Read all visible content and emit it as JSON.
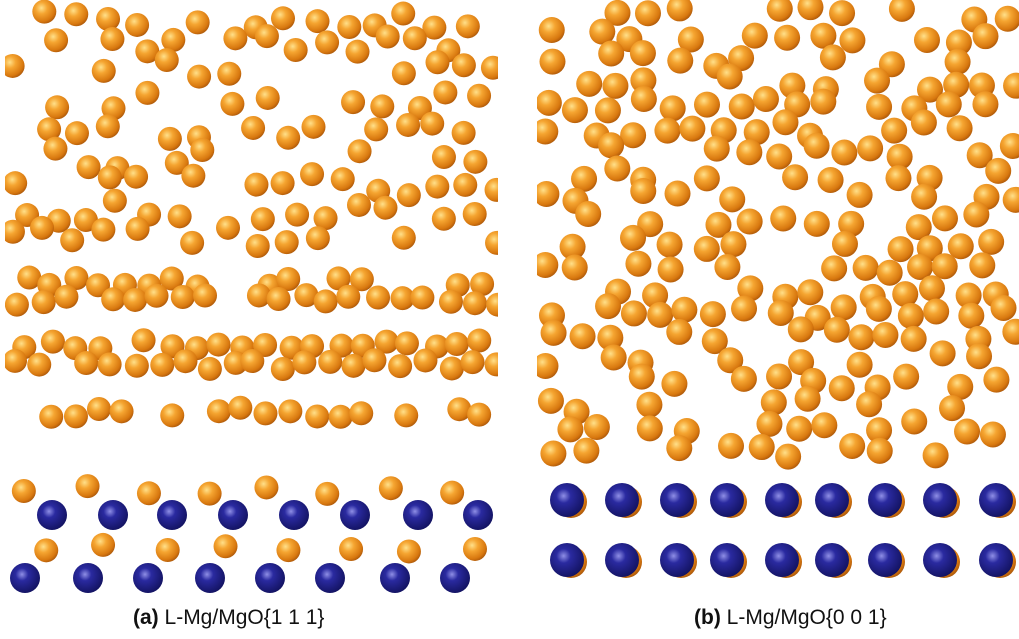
{
  "panels": [
    {
      "label": "(a)",
      "caption": "L-Mg/MgO{1 1 1}"
    },
    {
      "label": "(b)",
      "caption": "L-Mg/MgO{0 0 1}"
    }
  ]
}
